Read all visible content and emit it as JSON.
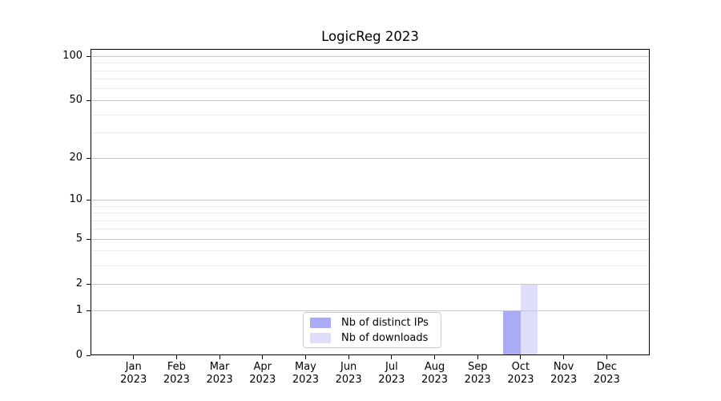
{
  "page": {
    "background": "#ffffff"
  },
  "chart_data": {
    "type": "bar",
    "title": "LogicReg 2023",
    "categories": [
      "Jan",
      "Feb",
      "Mar",
      "Apr",
      "May",
      "Jun",
      "Jul",
      "Aug",
      "Sep",
      "Oct",
      "Nov",
      "Dec"
    ],
    "category_year": "2023",
    "series": [
      {
        "name": "Nb of distinct IPs",
        "color": "#aaaaf5",
        "values": [
          0,
          0,
          0,
          0,
          0,
          0,
          0,
          0,
          0,
          1,
          0,
          0
        ]
      },
      {
        "name": "Nb of downloads",
        "color": "#dedefa",
        "values": [
          0,
          0,
          0,
          0,
          0,
          0,
          0,
          0,
          0,
          2,
          0,
          0
        ]
      }
    ],
    "y_scale": "log1p",
    "y_ticks": [
      0,
      1,
      2,
      5,
      10,
      20,
      50,
      100
    ],
    "y_minor_gridlines": [
      3,
      4,
      6,
      7,
      8,
      9,
      30,
      40,
      60,
      70,
      80,
      90
    ],
    "ylim": [
      0,
      112
    ],
    "grid": "horizontal",
    "legend_position": "lower center",
    "colors": {
      "bar_distinct_ips": "#aaaaf5",
      "bar_downloads": "#dedefa",
      "major_grid": "#c8c8c8",
      "minor_grid": "#ededed",
      "axis_frame": "#000000",
      "legend_border": "#cccccc",
      "text": "#000000",
      "background": "#ffffff"
    }
  }
}
